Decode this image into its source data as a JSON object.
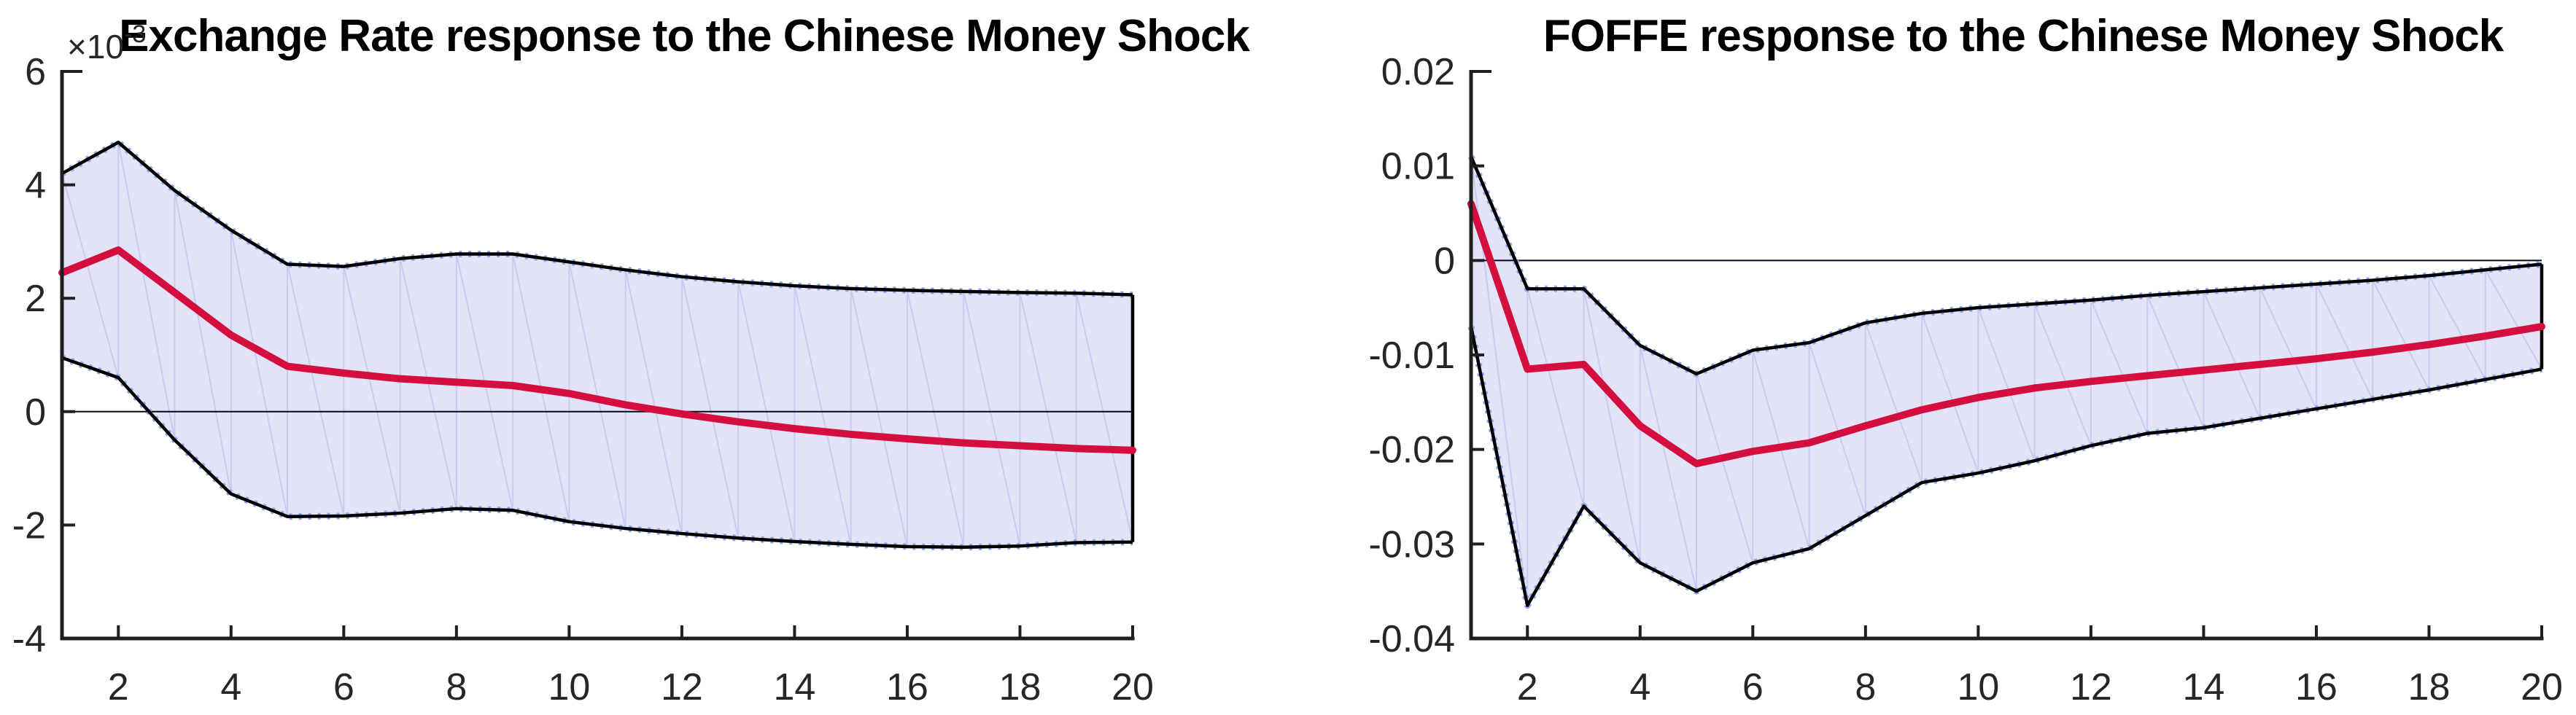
{
  "figure": {
    "background": "#ffffff",
    "panels": [
      "exchange-rate",
      "foffe"
    ]
  },
  "colors": {
    "median_line": "#d40f3f",
    "band_fill": "#e2e3f7",
    "band_edge": "#000000",
    "band_marker": "#8fa6ea",
    "fan_line": "#c9cbee",
    "zero_line": "#06061e",
    "axis": "#1f1f1f",
    "tick_label": "#262626",
    "title": "#000000"
  },
  "chart_data": [
    {
      "type": "line",
      "title": "Exchange Rate response to the Chinese Money Shock",
      "y_exponent_label": {
        "prefix": "×10",
        "exp": "-3"
      },
      "x": [
        1,
        2,
        3,
        4,
        5,
        6,
        7,
        8,
        9,
        10,
        11,
        12,
        13,
        14,
        15,
        16,
        17,
        18,
        19,
        20
      ],
      "series": [
        {
          "name": "median",
          "values": [
            0.00245,
            0.00285,
            0.0021,
            0.00135,
            0.0008,
            0.00068,
            0.00058,
            0.00052,
            0.00046,
            0.00032,
            0.00012,
            -4e-05,
            -0.00018,
            -0.0003,
            -0.0004,
            -0.00048,
            -0.00055,
            -0.0006,
            -0.00065,
            -0.00068
          ]
        },
        {
          "name": "upper_band",
          "values": [
            0.0042,
            0.00475,
            0.0039,
            0.0032,
            0.0026,
            0.00256,
            0.0027,
            0.00278,
            0.00278,
            0.00264,
            0.0025,
            0.00238,
            0.00229,
            0.00222,
            0.00217,
            0.00214,
            0.00212,
            0.0021,
            0.00209,
            0.00206
          ]
        },
        {
          "name": "lower_band",
          "values": [
            0.00095,
            0.0006,
            -0.0005,
            -0.00145,
            -0.00185,
            -0.00184,
            -0.00179,
            -0.00171,
            -0.00174,
            -0.00194,
            -0.00206,
            -0.00215,
            -0.00223,
            -0.00229,
            -0.00234,
            -0.00238,
            -0.00239,
            -0.00237,
            -0.00231,
            -0.0023
          ]
        }
      ],
      "xlim": [
        1,
        20
      ],
      "ylim": [
        -0.004,
        0.006
      ],
      "xticks": {
        "values": [
          2,
          4,
          6,
          8,
          10,
          12,
          14,
          16,
          18,
          20
        ],
        "labels": [
          "2",
          "4",
          "6",
          "8",
          "10",
          "12",
          "14",
          "16",
          "18",
          "20"
        ]
      },
      "yticks": {
        "values": [
          0.006,
          0.004,
          0.002,
          0,
          -0.002,
          -0.004
        ],
        "labels": [
          "6",
          "4",
          "2",
          "0",
          "-2",
          "-4"
        ]
      },
      "zero_line": true,
      "grid": false,
      "legend": null
    },
    {
      "type": "line",
      "title": "FOFFE response to the Chinese Money Shock",
      "y_exponent_label": null,
      "x": [
        1,
        2,
        3,
        4,
        5,
        6,
        7,
        8,
        9,
        10,
        11,
        12,
        13,
        14,
        15,
        16,
        17,
        18,
        19,
        20
      ],
      "series": [
        {
          "name": "median",
          "values": [
            0.006,
            -0.0115,
            -0.011,
            -0.0175,
            -0.0215,
            -0.0202,
            -0.0193,
            -0.0175,
            -0.0158,
            -0.0145,
            -0.0135,
            -0.0128,
            -0.0122,
            -0.0116,
            -0.011,
            -0.0104,
            -0.0097,
            -0.0089,
            -0.008,
            -0.007
          ]
        },
        {
          "name": "upper_band",
          "values": [
            0.011,
            -0.003,
            -0.003,
            -0.009,
            -0.012,
            -0.0095,
            -0.0087,
            -0.0066,
            -0.0056,
            -0.005,
            -0.0046,
            -0.0042,
            -0.0037,
            -0.0033,
            -0.0029,
            -0.0025,
            -0.0021,
            -0.0016,
            -0.001,
            -0.0004
          ]
        },
        {
          "name": "lower_band",
          "values": [
            -0.007,
            -0.0365,
            -0.026,
            -0.032,
            -0.035,
            -0.032,
            -0.0305,
            -0.027,
            -0.0235,
            -0.0225,
            -0.0212,
            -0.0196,
            -0.0183,
            -0.0177,
            -0.0167,
            -0.0157,
            -0.0147,
            -0.0137,
            -0.0126,
            -0.0115
          ]
        }
      ],
      "xlim": [
        1,
        20
      ],
      "ylim": [
        -0.04,
        0.02
      ],
      "xticks": {
        "values": [
          2,
          4,
          6,
          8,
          10,
          12,
          14,
          16,
          18,
          20
        ],
        "labels": [
          "2",
          "4",
          "6",
          "8",
          "10",
          "12",
          "14",
          "16",
          "18",
          "20"
        ]
      },
      "yticks": {
        "values": [
          0.02,
          0.01,
          0,
          -0.01,
          -0.02,
          -0.03,
          -0.04
        ],
        "labels": [
          "0.02",
          "0.01",
          "0",
          "-0.01",
          "-0.02",
          "-0.03",
          "-0.04"
        ]
      },
      "zero_line": true,
      "grid": false,
      "legend": null
    }
  ]
}
